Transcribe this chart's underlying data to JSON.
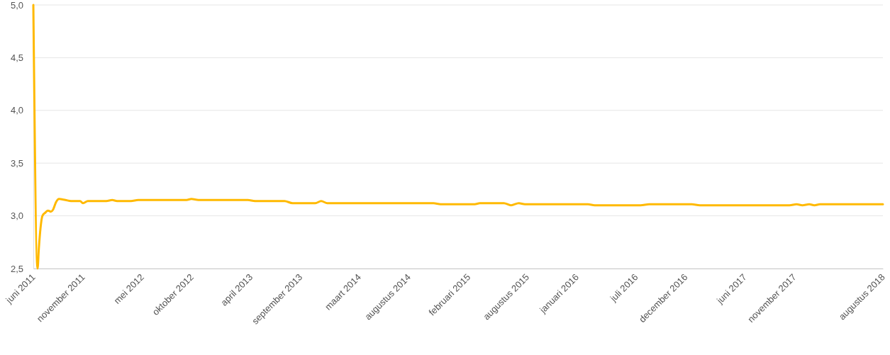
{
  "chart_data": {
    "type": "line",
    "x": [
      "2011-06-01",
      "2011-06-14",
      "2011-06-18",
      "2011-06-23",
      "2011-06-29",
      "2011-07-08",
      "2011-07-16",
      "2011-07-25",
      "2011-08-01",
      "2011-08-10",
      "2011-08-19",
      "2011-09-08",
      "2011-09-25",
      "2011-10-23",
      "2011-11-01",
      "2011-11-16",
      "2012-01-12",
      "2012-01-30",
      "2012-02-14",
      "2012-03-28",
      "2012-04-19",
      "2012-09-15",
      "2012-09-30",
      "2012-10-22",
      "2013-03-23",
      "2013-04-14",
      "2013-07-14",
      "2013-08-08",
      "2013-10-17",
      "2013-11-04",
      "2013-11-23",
      "2014-10-16",
      "2014-11-07",
      "2015-02-20",
      "2015-03-08",
      "2015-05-21",
      "2015-06-12",
      "2015-07-06",
      "2015-07-25",
      "2016-02-04",
      "2016-02-25",
      "2016-07-15",
      "2016-08-11",
      "2016-12-20",
      "2017-01-14",
      "2017-10-17",
      "2017-11-08",
      "2017-11-26",
      "2017-12-17",
      "2018-01-02",
      "2018-01-19",
      "2018-08-01"
    ],
    "series": [
      {
        "color": "#ffb900",
        "values": [
          5.0,
          2.5,
          2.69,
          2.88,
          3.0,
          3.03,
          3.05,
          3.04,
          3.06,
          3.13,
          3.16,
          3.15,
          3.14,
          3.14,
          3.12,
          3.14,
          3.14,
          3.15,
          3.14,
          3.14,
          3.15,
          3.15,
          3.16,
          3.15,
          3.15,
          3.14,
          3.14,
          3.12,
          3.12,
          3.14,
          3.12,
          3.12,
          3.11,
          3.11,
          3.12,
          3.12,
          3.1,
          3.12,
          3.11,
          3.11,
          3.1,
          3.1,
          3.11,
          3.11,
          3.1,
          3.1,
          3.11,
          3.1,
          3.11,
          3.1,
          3.11,
          3.11
        ]
      }
    ],
    "xlim": [
      "2011-06-01",
      "2018-08-01"
    ],
    "xticks": [
      {
        "value": "2011-06",
        "label": "juni 2011"
      },
      {
        "value": "2011-11",
        "label": "november 2011"
      },
      {
        "value": "2012-05",
        "label": "mei 2012"
      },
      {
        "value": "2012-10",
        "label": "oktober 2012"
      },
      {
        "value": "2013-04",
        "label": "april 2013"
      },
      {
        "value": "2013-09",
        "label": "september 2013"
      },
      {
        "value": "2014-03",
        "label": "maart 2014"
      },
      {
        "value": "2014-08",
        "label": "augustus 2014"
      },
      {
        "value": "2015-02",
        "label": "februari 2015"
      },
      {
        "value": "2015-08",
        "label": "augustus 2015"
      },
      {
        "value": "2016-01",
        "label": "januari 2016"
      },
      {
        "value": "2016-07",
        "label": "juli 2016"
      },
      {
        "value": "2016-12",
        "label": "december 2016"
      },
      {
        "value": "2017-06",
        "label": "juni 2017"
      },
      {
        "value": "2017-11",
        "label": "november 2017"
      },
      {
        "value": "2018-08",
        "label": "augustus 2018"
      }
    ],
    "ylim": [
      2.5,
      5.0
    ],
    "yticks": [
      {
        "value": 2.5,
        "label": "2,5"
      },
      {
        "value": 3.0,
        "label": "3,0"
      },
      {
        "value": 3.5,
        "label": "3,5"
      },
      {
        "value": 4.0,
        "label": "4,0"
      },
      {
        "value": 4.5,
        "label": "4,5"
      },
      {
        "value": 5.0,
        "label": "5,0"
      }
    ],
    "grid": "y"
  }
}
